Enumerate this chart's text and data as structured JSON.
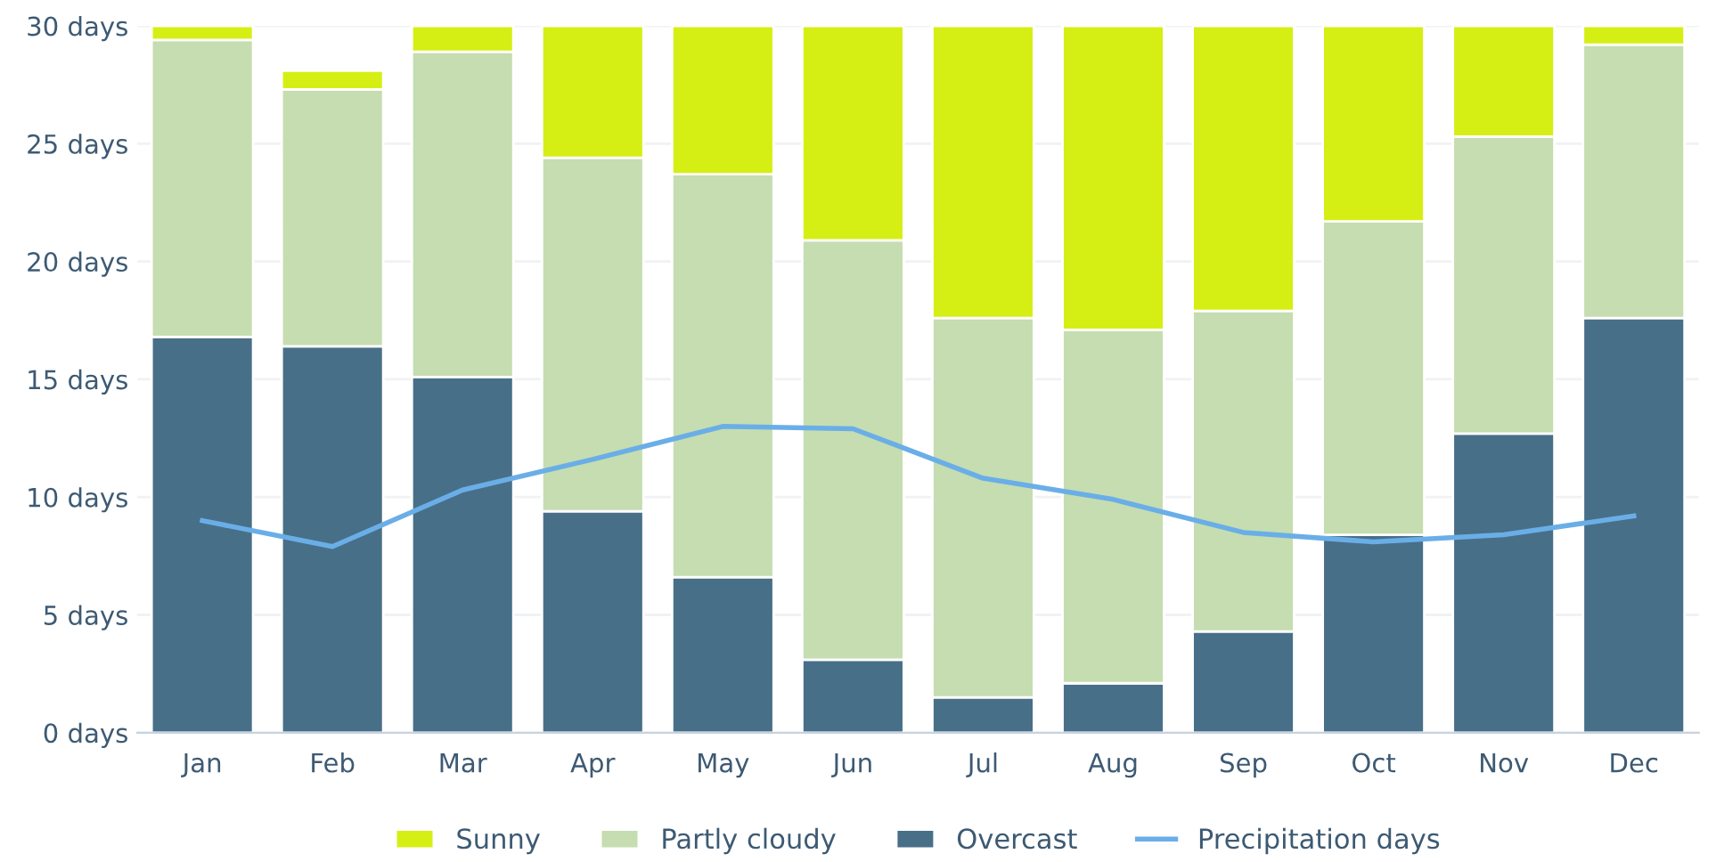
{
  "chart_data": {
    "type": "bar",
    "stacked": true,
    "categories": [
      "Jan",
      "Feb",
      "Mar",
      "Apr",
      "May",
      "Jun",
      "Jul",
      "Aug",
      "Sep",
      "Oct",
      "Nov",
      "Dec"
    ],
    "series": [
      {
        "name": "Overcast",
        "color": "#486f88",
        "values": [
          16.8,
          16.4,
          15.1,
          9.4,
          6.6,
          3.1,
          1.5,
          2.1,
          4.3,
          8.4,
          12.7,
          17.6
        ]
      },
      {
        "name": "Partly cloudy",
        "color": "#c5ddb0",
        "values": [
          12.6,
          10.9,
          13.8,
          15.0,
          17.1,
          17.8,
          16.1,
          15.0,
          13.6,
          13.3,
          12.6,
          11.6
        ]
      },
      {
        "name": "Sunny",
        "color": "#d5ef14",
        "values": [
          0.6,
          0.8,
          1.1,
          5.6,
          6.3,
          9.1,
          12.4,
          12.9,
          12.1,
          8.3,
          4.7,
          0.8
        ]
      },
      {
        "name": "Precipitation days",
        "type": "line",
        "color": "#6aaee8",
        "values": [
          9.0,
          7.9,
          10.3,
          11.6,
          13.0,
          12.9,
          10.8,
          9.9,
          8.5,
          8.1,
          8.4,
          9.2
        ]
      }
    ],
    "ylim": [
      0,
      30
    ],
    "yticks": [
      {
        "value": 0,
        "label": "0 days"
      },
      {
        "value": 5,
        "label": "5 days"
      },
      {
        "value": 10,
        "label": "10 days"
      },
      {
        "value": 15,
        "label": "15 days"
      },
      {
        "value": 20,
        "label": "20 days"
      },
      {
        "value": 25,
        "label": "25 days"
      },
      {
        "value": 30,
        "label": "30 days"
      }
    ],
    "grid": "y",
    "legend": "bottom",
    "marker": "none",
    "line_style": "solid"
  }
}
